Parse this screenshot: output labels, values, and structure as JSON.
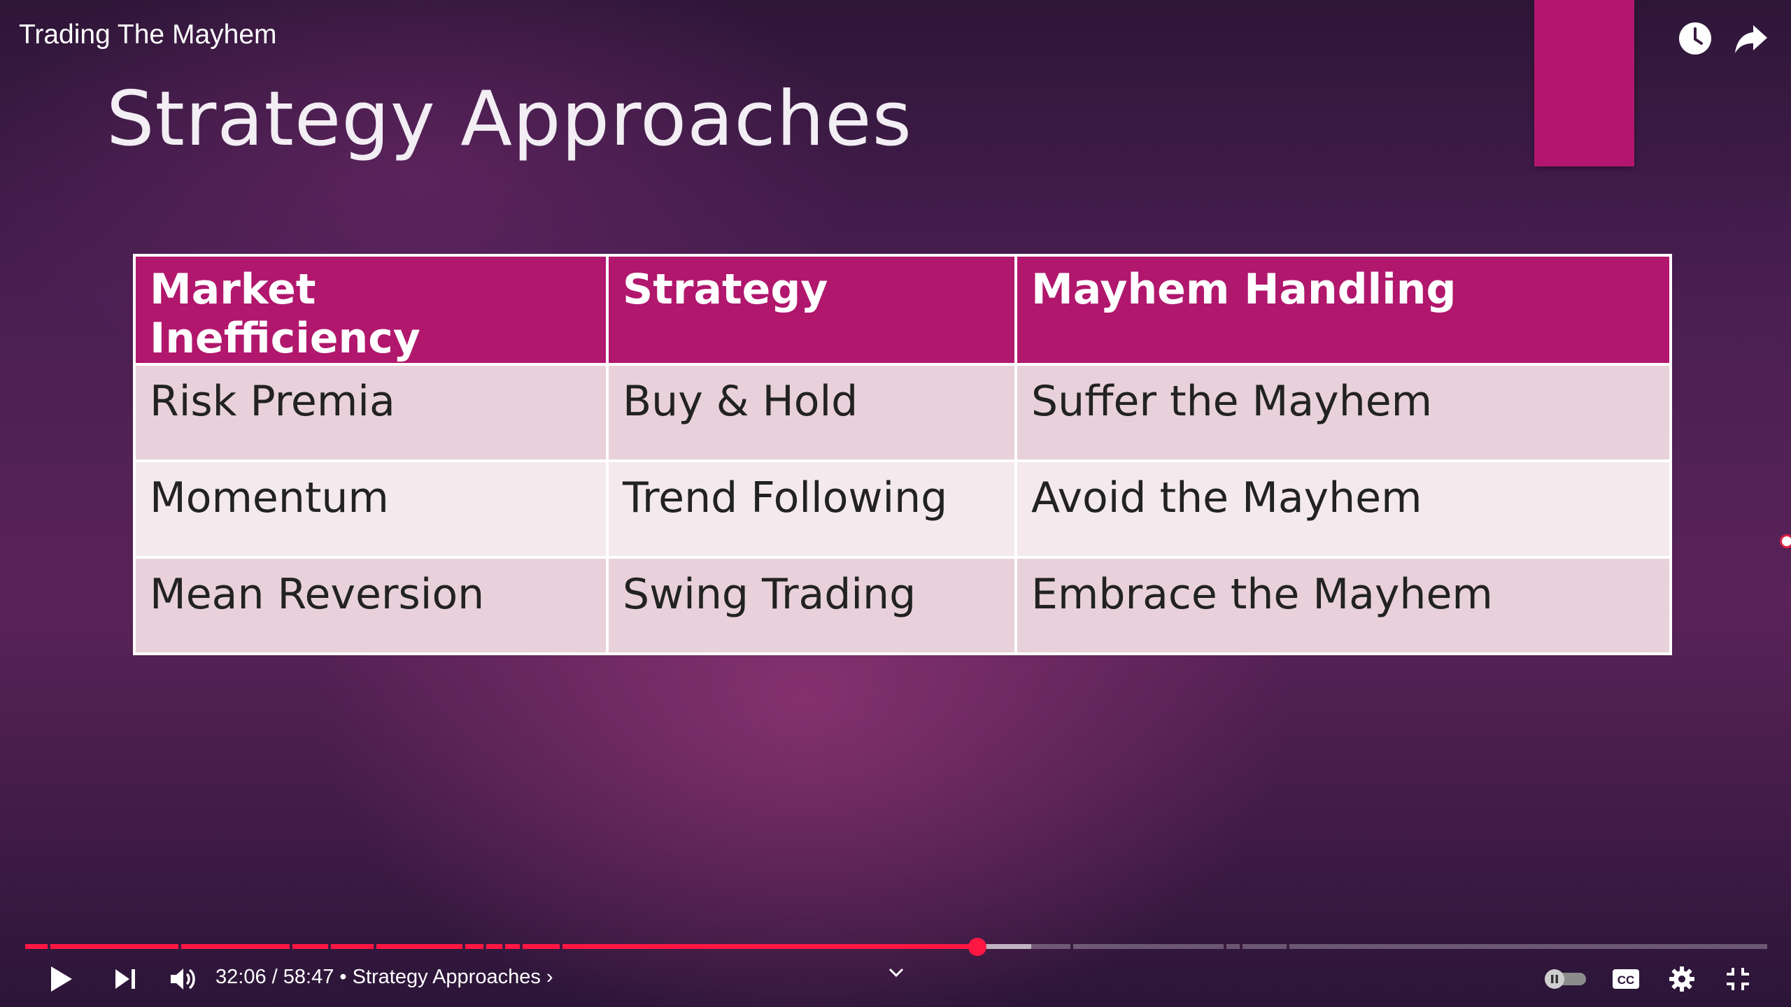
{
  "video": {
    "title": "Trading The Mayhem"
  },
  "slide": {
    "title": "Strategy Approaches",
    "table": {
      "headers": [
        "Market Inefficiency",
        "Strategy",
        "Mayhem Handling"
      ],
      "rows": [
        [
          "Risk Premia",
          "Buy & Hold",
          "Suffer the Mayhem"
        ],
        [
          "Momentum",
          "Trend Following",
          "Avoid the Mayhem"
        ],
        [
          "Mean Reversion",
          "Swing Trading",
          "Embrace the Mayhem"
        ]
      ]
    }
  },
  "player": {
    "current_time": "32:06",
    "separator": " / ",
    "duration": "58:47",
    "chapter_prefix": " • ",
    "chapter": "Strategy Approaches",
    "chapter_arrow": "›",
    "played_fraction": 0.5465,
    "buffered_fraction": 0.5775,
    "accent_color": "#ff1744",
    "chapter_marker_fractions": [
      0.013,
      0.088,
      0.152,
      0.174,
      0.2,
      0.251,
      0.263,
      0.274,
      0.284,
      0.307,
      0.6,
      0.688,
      0.697,
      0.724
    ],
    "icons": {
      "watch_later": "clock-icon",
      "share": "share-arrow-icon",
      "play": "play-icon",
      "next": "next-icon",
      "volume": "volume-icon",
      "autoplay": "autoplay-toggle-icon",
      "captions": "cc-icon",
      "settings": "gear-icon",
      "exit_fullscreen": "exit-fullscreen-icon",
      "chapters_expand": "chevron-down-icon"
    }
  }
}
